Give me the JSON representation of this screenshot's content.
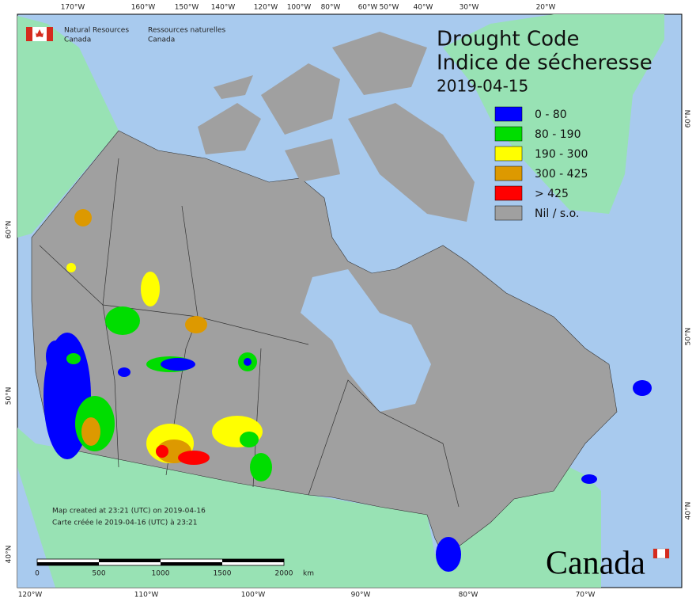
{
  "header": {
    "agency_en": [
      "Natural Resources",
      "Canada"
    ],
    "agency_fr": [
      "Ressources naturelles",
      "Canada"
    ]
  },
  "title": {
    "en": "Drought Code",
    "fr": "Indice de sécheresse",
    "date": "2019-04-15"
  },
  "legend": [
    {
      "label": "0 - 80",
      "color": "#0000ff"
    },
    {
      "label": "80 - 190",
      "color": "#00dd00"
    },
    {
      "label": "190 - 300",
      "color": "#ffff00"
    },
    {
      "label": "300 - 425",
      "color": "#dd9900"
    },
    {
      "label": "> 425",
      "color": "#ff0000"
    },
    {
      "label": "Nil / s.o.",
      "color": "#a0a0a0"
    }
  ],
  "top_lon_labels": [
    "170°W",
    "160°W",
    "150°W",
    "140°W",
    "120°W",
    "100°W",
    "80°W",
    "60°W",
    "50°W",
    "40°W",
    "30°W",
    "20°W"
  ],
  "bottom_lon_labels": [
    "120°W",
    "110°W",
    "100°W",
    "90°W",
    "80°W",
    "70°W"
  ],
  "left_lat_labels": [
    "60°N",
    "50°N",
    "40°N"
  ],
  "right_lat_labels": [
    "60°N",
    "50°N",
    "40°N"
  ],
  "credit": [
    "Map created at 23:21 (UTC) on 2019-04-16",
    "Carte créée le 2019-04-16 (UTC) à 23:21"
  ],
  "scale": {
    "ticks": [
      0,
      500,
      1000,
      1500,
      2000
    ],
    "unit": "km"
  },
  "wordmark": "Canada"
}
